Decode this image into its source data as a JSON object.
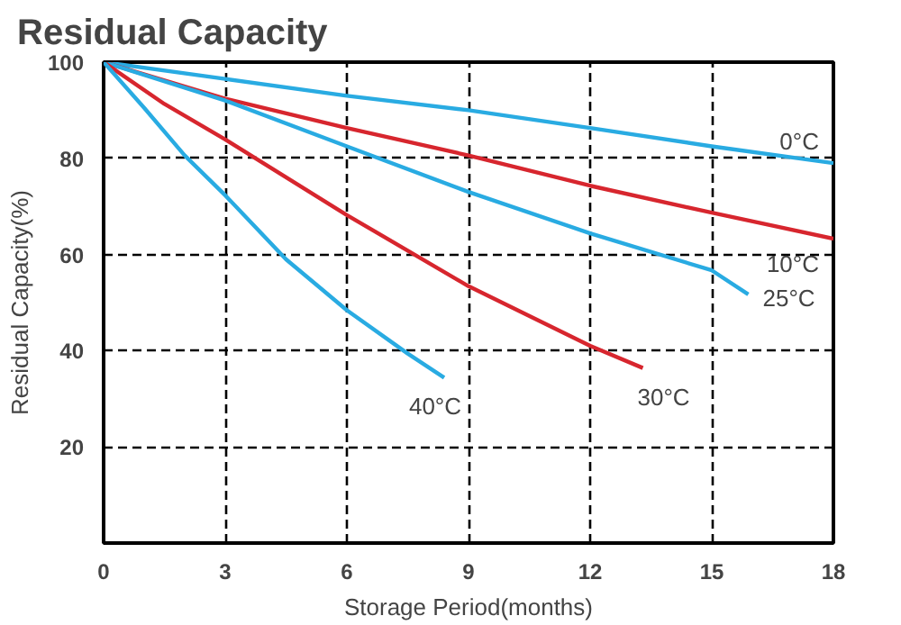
{
  "chart_data": {
    "type": "line",
    "title": "Residual Capacity",
    "xlabel": "Storage Period(months)",
    "ylabel": "Residual Capacity(%)",
    "xlim": [
      0,
      18
    ],
    "ylim": [
      0,
      100
    ],
    "xticks": [
      0,
      3,
      6,
      9,
      12,
      15,
      18
    ],
    "yticks": [
      20,
      40,
      60,
      80,
      100
    ],
    "grid": true,
    "marker": "none",
    "line_style": "solid",
    "series": [
      {
        "name": "0°C",
        "color": "#29abe2",
        "x": [
          0,
          3,
          6,
          9,
          12,
          15,
          18
        ],
        "values": [
          100,
          96.5,
          93,
          90,
          86.3,
          82.5,
          79
        ]
      },
      {
        "name": "10°C",
        "color": "#d7262e",
        "x": [
          0,
          3,
          6,
          9,
          12,
          15,
          18
        ],
        "values": [
          100,
          92.4,
          86.3,
          80.6,
          74.3,
          68.7,
          63.3
        ]
      },
      {
        "name": "25°C",
        "color": "#29abe2",
        "x": [
          0,
          3,
          6,
          9,
          12,
          15,
          15.9
        ],
        "values": [
          100,
          92,
          82.5,
          73,
          64.4,
          56.7,
          51.7
        ]
      },
      {
        "name": "30°C",
        "color": "#d7262e",
        "x": [
          0,
          1.5,
          3,
          6,
          9,
          12,
          13.3
        ],
        "values": [
          100,
          91.3,
          83.9,
          68.2,
          53.4,
          41,
          36.4
        ]
      },
      {
        "name": "40°C",
        "color": "#29abe2",
        "x": [
          0,
          1,
          2,
          3,
          4.5,
          6,
          7.5,
          8.4
        ],
        "values": [
          100,
          90.5,
          80.6,
          72.3,
          59,
          48.4,
          39.4,
          34.4
        ]
      }
    ]
  }
}
